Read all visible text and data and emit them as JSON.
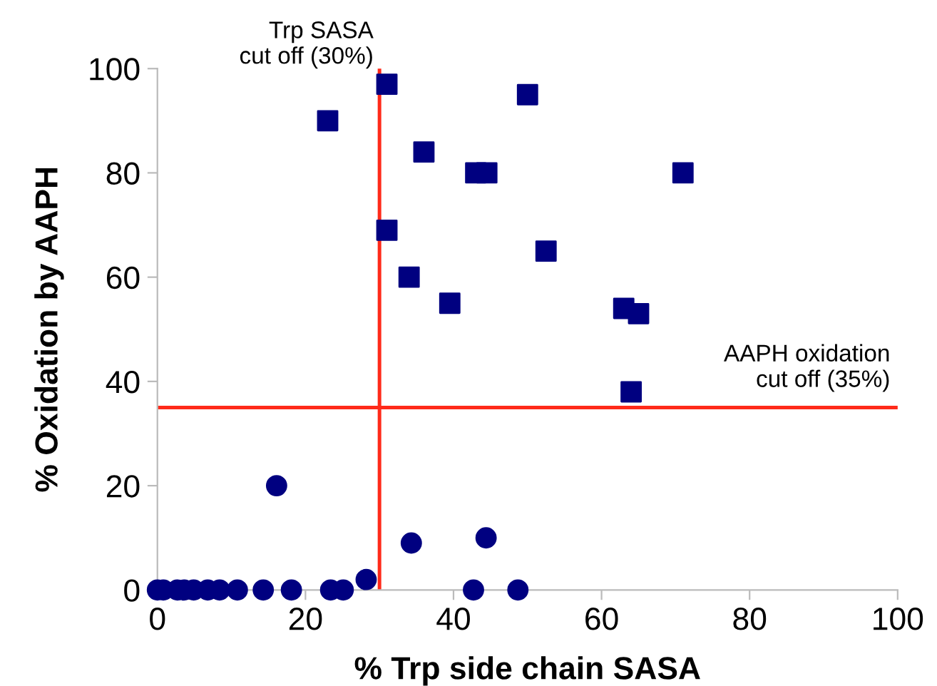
{
  "chart_data": {
    "type": "scatter",
    "xlabel": "% Trp side chain SASA",
    "ylabel": "% Oxidation by AAPH",
    "xlim": [
      0,
      100
    ],
    "ylim": [
      0,
      100
    ],
    "xticks": [
      0,
      20,
      40,
      60,
      80,
      100
    ],
    "yticks": [
      0,
      20,
      40,
      60,
      80,
      100
    ],
    "grid": false,
    "legend": false,
    "series": [
      {
        "marker": "square",
        "color": "#000080",
        "x": [
          23,
          31,
          31,
          36,
          43,
          44.5,
          50,
          52.5,
          34,
          39.5,
          63,
          65,
          71,
          64
        ],
        "values": [
          90,
          97,
          69,
          84,
          80,
          80,
          95,
          65,
          60,
          55,
          54,
          53,
          80,
          38
        ]
      },
      {
        "marker": "circle",
        "color": "#000080",
        "x": [
          0,
          0.8,
          2.7,
          3.6,
          4.9,
          6.8,
          8.4,
          10.8,
          14.3,
          18.1,
          23.4,
          25.1,
          28.2,
          16.1,
          34.3,
          44.4,
          42.7,
          48.7
        ],
        "values": [
          0,
          0,
          0,
          0,
          0,
          0,
          0,
          0,
          0,
          0,
          0,
          0,
          2,
          20,
          9,
          10,
          0,
          0
        ]
      }
    ],
    "ref_lines": [
      {
        "axis": "x",
        "value": 30,
        "label": "Trp SASA\ncut off (30%)",
        "color": "#ff2a1a"
      },
      {
        "axis": "y",
        "value": 35,
        "label": "AAPH oxidation\ncut off (35%)",
        "color": "#ff2a1a"
      }
    ]
  }
}
